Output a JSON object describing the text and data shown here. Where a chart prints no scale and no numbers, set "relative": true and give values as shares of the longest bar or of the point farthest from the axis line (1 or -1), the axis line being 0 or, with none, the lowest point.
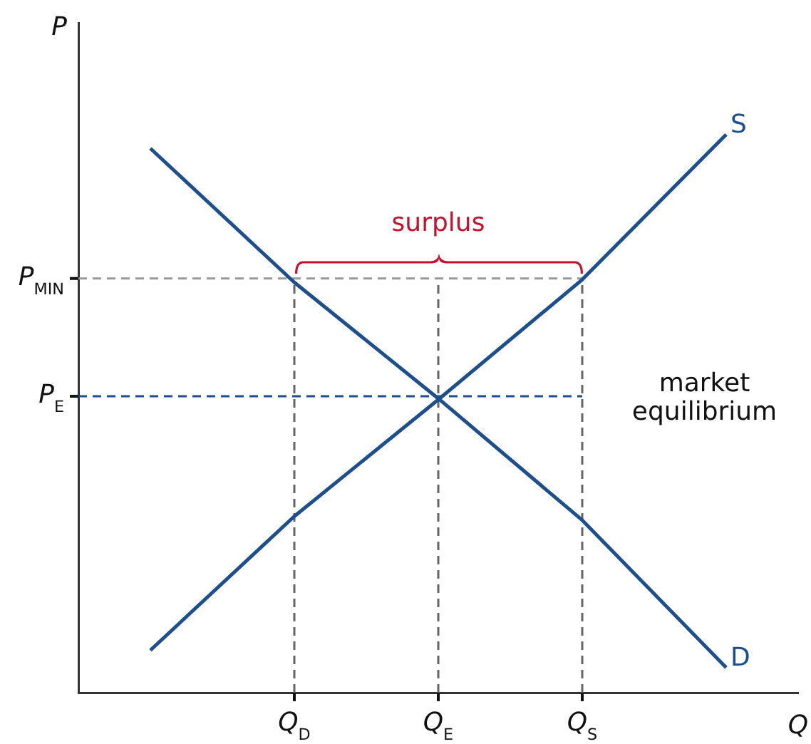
{
  "chart_data": {
    "type": "line",
    "relative": true,
    "xlabel": "Q",
    "ylabel": "P",
    "marker": "none",
    "line_style": "solid",
    "grid": "x",
    "legend": false,
    "categories": [
      null,
      "Q$_{D}$",
      "Q$_{E}$",
      "Q$_{S}$",
      null
    ],
    "series": [
      {
        "name": "S",
        "color": "#1f4e8c",
        "values": [
          0.076,
          0.316,
          0.525,
          0.74,
          1.0
        ]
      },
      {
        "name": "D",
        "color": "#1f4e8c",
        "values": [
          0.975,
          0.735,
          0.527,
          0.309,
          0.045
        ]
      }
    ],
    "ref_lines": [
      {
        "axis": "y",
        "value": 0.742,
        "label": "P$_{MIN}$",
        "color": "#999999",
        "line_style": "dashed"
      },
      {
        "axis": "y",
        "value": 0.531,
        "label": "P$_{E}$",
        "color": "#1f4e8c",
        "line_style": "dashed"
      }
    ],
    "annotations": [
      "surplus",
      "market equilibrium"
    ]
  }
}
